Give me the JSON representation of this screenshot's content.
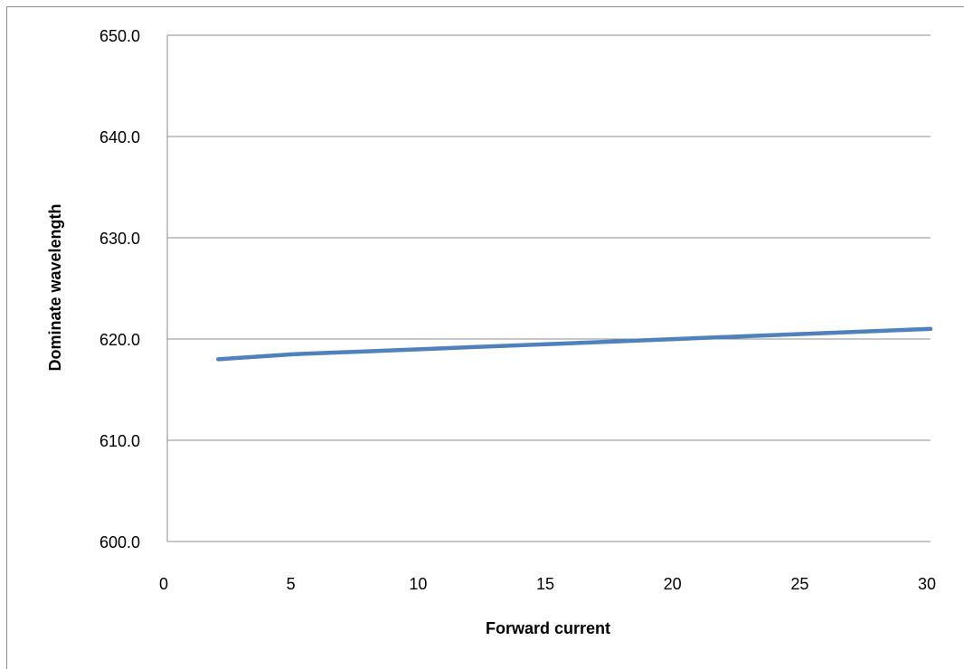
{
  "chart_data": {
    "type": "line",
    "title": "",
    "xlabel": "Forward current",
    "ylabel": "Dominate wavelength",
    "xlim": [
      0,
      30
    ],
    "ylim": [
      600,
      650
    ],
    "x_ticks": [
      0,
      5,
      10,
      15,
      20,
      25,
      30
    ],
    "x_tick_labels": [
      "0",
      "5",
      "10",
      "15",
      "20",
      "25",
      "30"
    ],
    "y_ticks": [
      600,
      610,
      620,
      630,
      640,
      650
    ],
    "y_tick_labels": [
      "600.0",
      "610.0",
      "620.0",
      "630.0",
      "640.0",
      "650.0"
    ],
    "grid": "horizontal",
    "legend": "none",
    "series": [
      {
        "color": "#4f81bd",
        "x": [
          2,
          5,
          10,
          15,
          20,
          25,
          30
        ],
        "y": [
          618.0,
          618.5,
          619.0,
          619.5,
          620.0,
          620.5,
          621.0
        ]
      }
    ]
  }
}
